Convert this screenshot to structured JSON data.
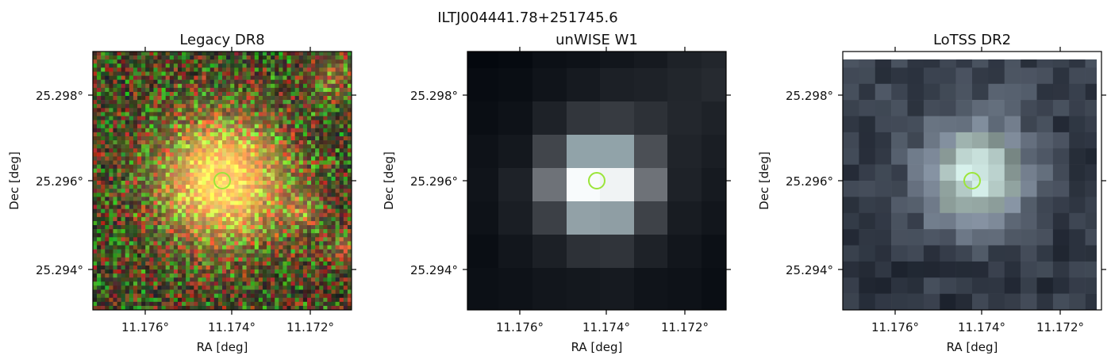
{
  "figure": {
    "title": "ILTJ004441.78+251745.6"
  },
  "panels": [
    {
      "title": "Legacy DR8",
      "xlabel": "RA [deg]",
      "ylabel": "Dec [deg]",
      "xticks": [
        "11.176°",
        "11.174°",
        "11.172°"
      ],
      "yticks": [
        "25.298°",
        "25.296°",
        "25.294°"
      ],
      "image_kind": "optical-rgb",
      "marker_color": "#9be53a"
    },
    {
      "title": "unWISE W1",
      "xlabel": "RA [deg]",
      "ylabel": "Dec [deg]",
      "xticks": [
        "11.176°",
        "11.174°",
        "11.172°"
      ],
      "yticks": [
        "25.298°",
        "25.296°",
        "25.294°"
      ],
      "image_kind": "infrared-grayscale",
      "marker_color": "#9be53a"
    },
    {
      "title": "LoTSS DR2",
      "xlabel": "RA [deg]",
      "ylabel": "Dec [deg]",
      "xticks": [
        "11.176°",
        "11.174°",
        "11.172°"
      ],
      "yticks": [
        "25.298°",
        "25.296°",
        "25.294°"
      ],
      "image_kind": "radio-grayscale",
      "marker_color": "#9be53a"
    }
  ]
}
